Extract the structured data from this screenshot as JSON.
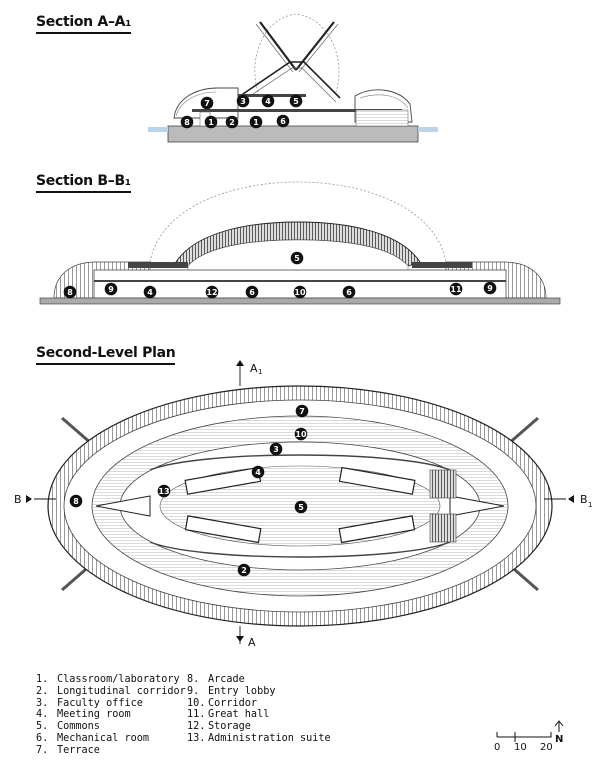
{
  "sections": {
    "a": "Section A–A₁",
    "b": "Section B–B₁",
    "plan": "Second-Level Plan"
  },
  "cut_labels": {
    "a_top": "A",
    "a_top_sub": "1",
    "a_bottom": "A",
    "b_left": "B",
    "b_right": "B",
    "b_right_sub": "1"
  },
  "legend": {
    "col1": [
      {
        "num": "1.",
        "label": "Classroom/laboratory"
      },
      {
        "num": "2.",
        "label": "Longitudinal corridor"
      },
      {
        "num": "3.",
        "label": "Faculty office"
      },
      {
        "num": "4.",
        "label": "Meeting room"
      },
      {
        "num": "5.",
        "label": "Commons"
      },
      {
        "num": "6.",
        "label": "Mechanical room"
      },
      {
        "num": "7.",
        "label": "Terrace"
      }
    ],
    "col2": [
      {
        "num": "8.",
        "label": "Arcade"
      },
      {
        "num": "9.",
        "label": "Entry lobby"
      },
      {
        "num": "10.",
        "label": "Corridor"
      },
      {
        "num": "11.",
        "label": "Great hall"
      },
      {
        "num": "12.",
        "label": "Storage"
      },
      {
        "num": "13.",
        "label": "Administration suite"
      }
    ]
  },
  "scale": {
    "t0": "0",
    "t1": "10",
    "t2": "20",
    "north": "N"
  },
  "markers": {
    "secA": [
      "7",
      "3",
      "4",
      "5",
      "8",
      "1",
      "2",
      "1",
      "6"
    ],
    "secB": [
      "5",
      "8",
      "9",
      "4",
      "12",
      "6",
      "10",
      "6",
      "11",
      "9"
    ],
    "plan": [
      "7",
      "10",
      "3",
      "4",
      "13",
      "8",
      "5",
      "2"
    ]
  }
}
